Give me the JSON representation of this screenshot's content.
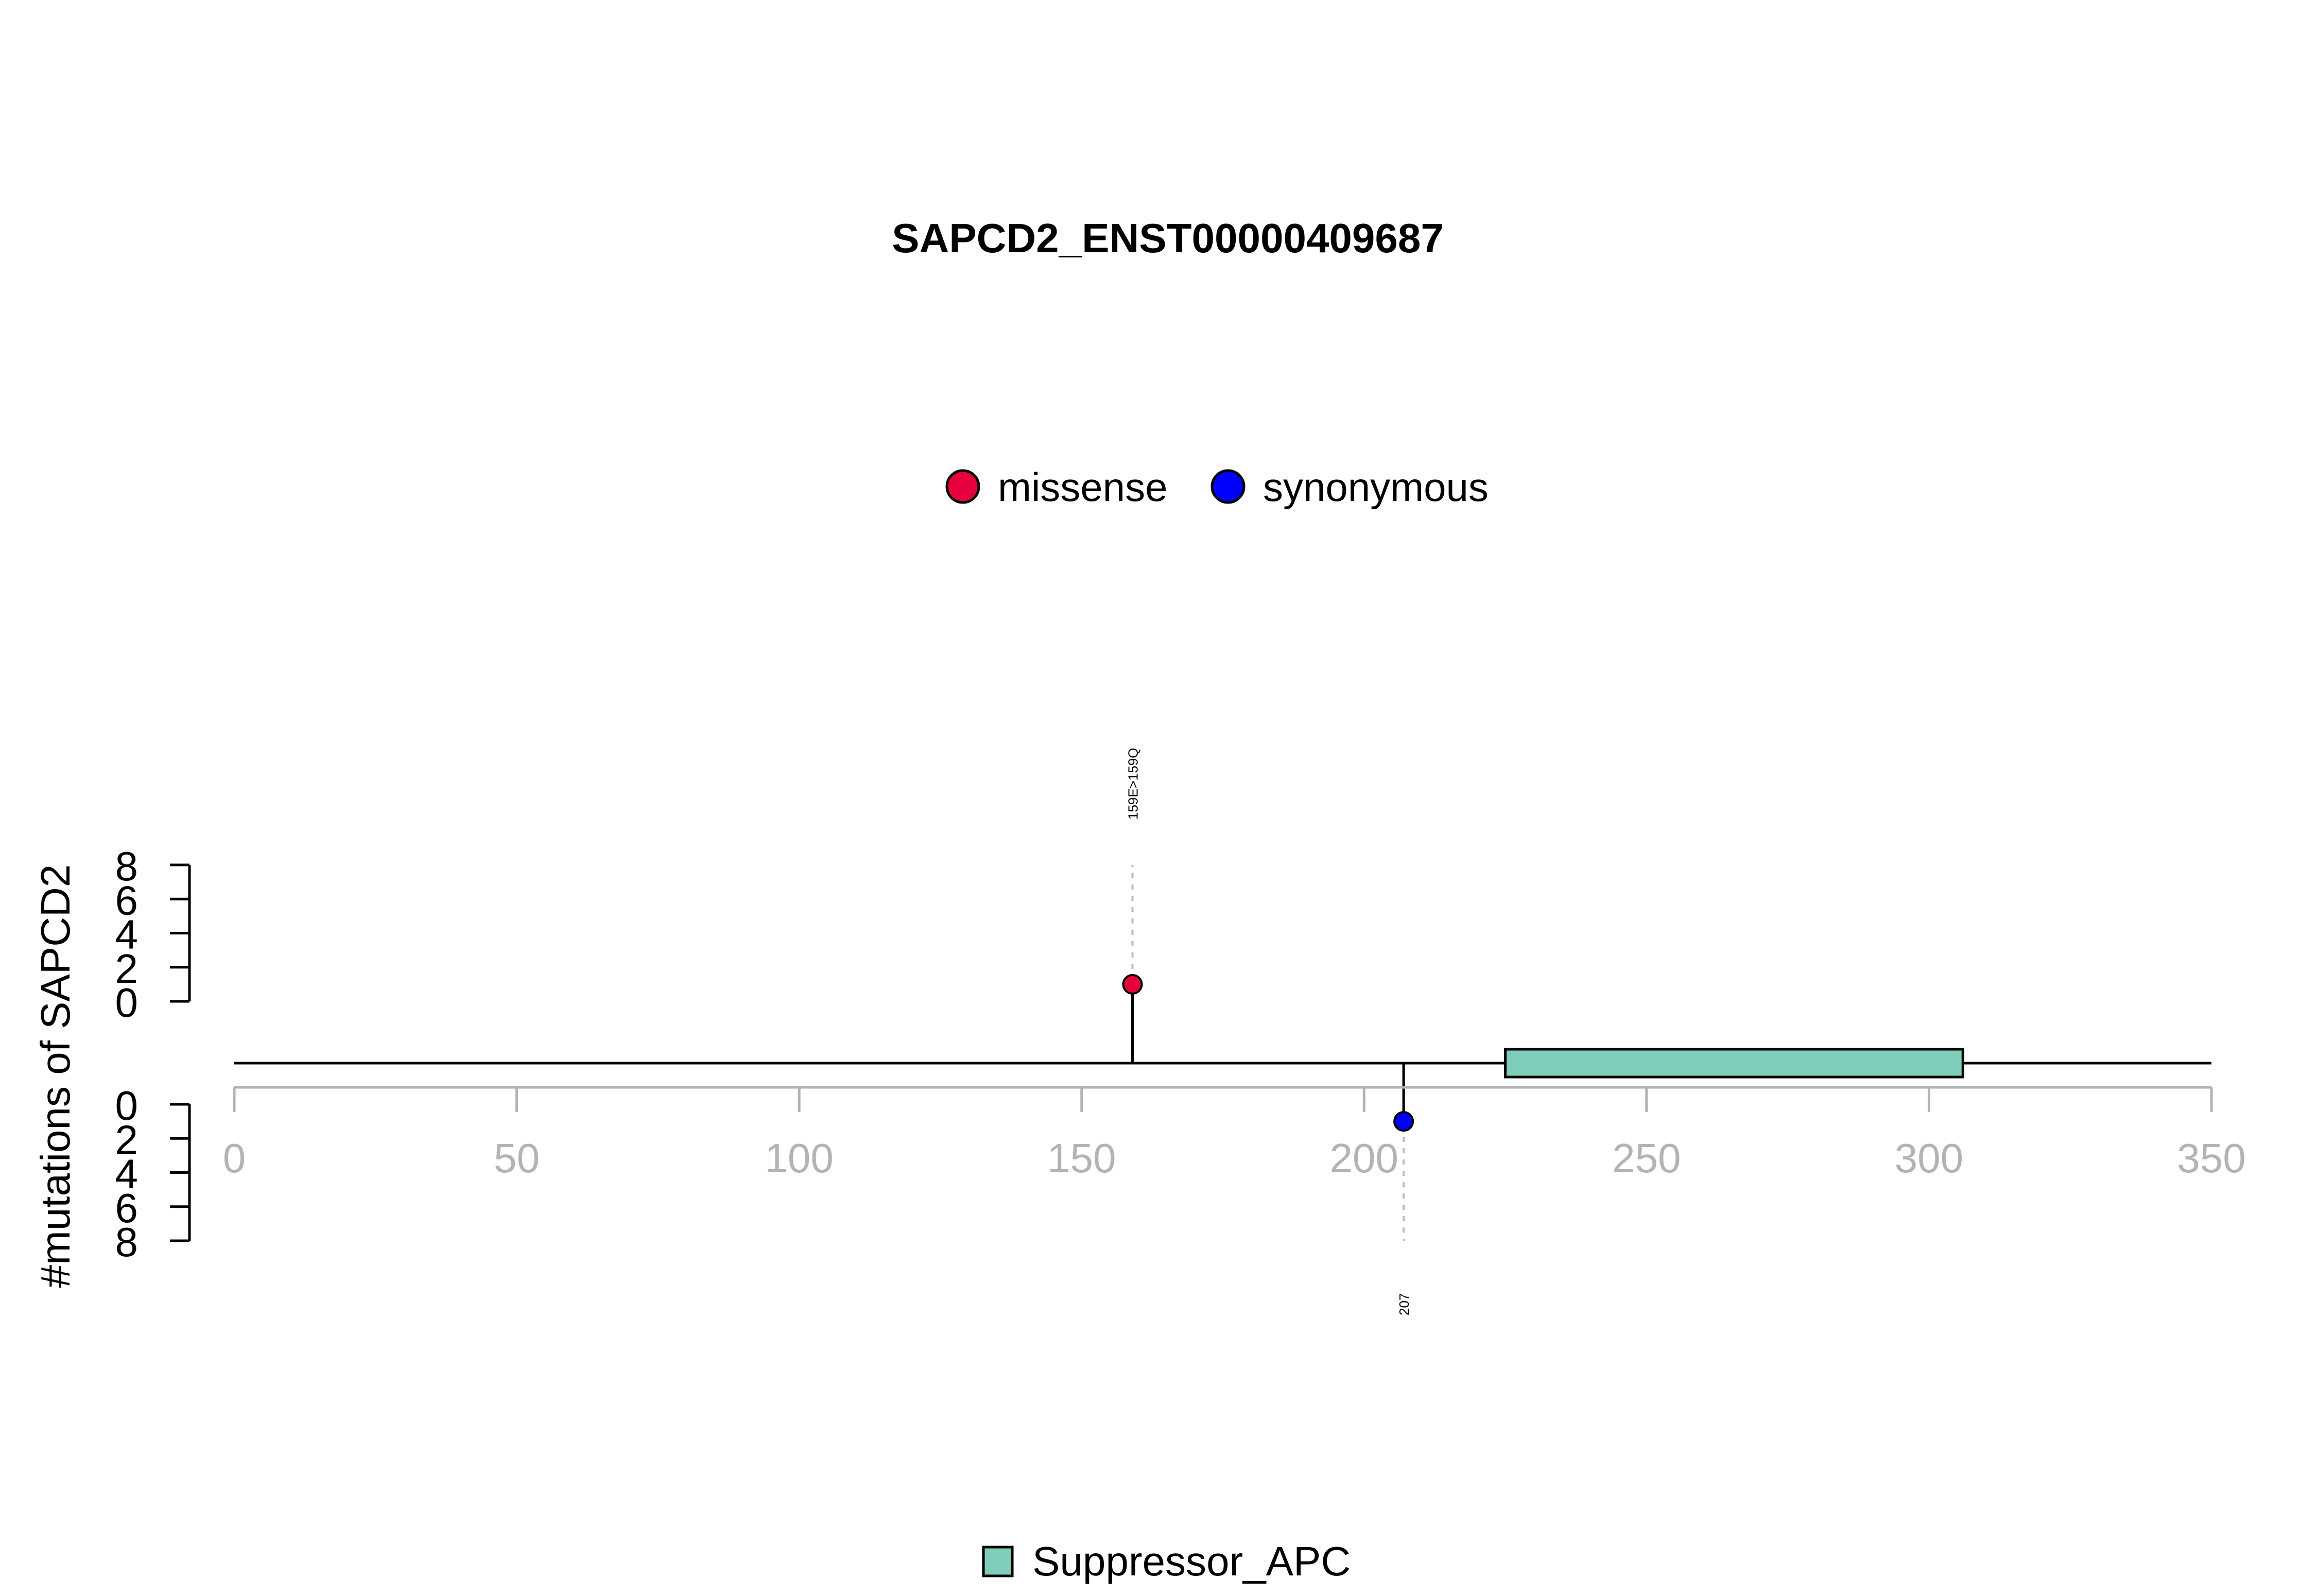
{
  "chart_data": {
    "type": "lollipop",
    "title": "SAPCD2_ENST00000409687",
    "ylabel": "#mutations of SAPCD2",
    "xlim": [
      0,
      350
    ],
    "x_ticks": [
      0,
      50,
      100,
      150,
      200,
      250,
      300,
      350
    ],
    "y_ticks_top": [
      0,
      2,
      4,
      6,
      8
    ],
    "y_ticks_bottom": [
      0,
      2,
      4,
      6,
      8
    ],
    "ylim": [
      0,
      8
    ],
    "legend_mutation_types": [
      {
        "name": "missense",
        "color": "#E6003C"
      },
      {
        "name": "synonymous",
        "color": "#0000FF"
      }
    ],
    "mutations": [
      {
        "position": 159,
        "count": 1,
        "type": "missense",
        "side": "top",
        "label": "159E>159Q",
        "color": "#E6003C"
      },
      {
        "position": 207,
        "count": 1,
        "type": "synonymous",
        "side": "bottom",
        "label": "207",
        "color": "#0000FF"
      }
    ],
    "domains": [
      {
        "name": "Suppressor_APC",
        "start": 225,
        "end": 306,
        "color": "#7FCDBB"
      }
    ],
    "legend_domains": [
      {
        "name": "Suppressor_APC",
        "color": "#7FCDBB"
      }
    ],
    "axis_color": "#B3B3B3"
  }
}
